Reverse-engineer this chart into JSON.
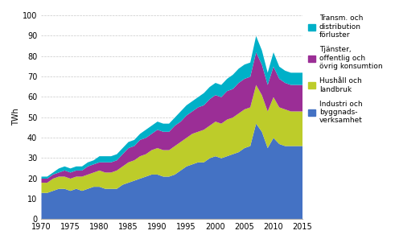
{
  "years": [
    1970,
    1971,
    1972,
    1973,
    1974,
    1975,
    1976,
    1977,
    1978,
    1979,
    1980,
    1981,
    1982,
    1983,
    1984,
    1985,
    1986,
    1987,
    1988,
    1989,
    1990,
    1991,
    1992,
    1993,
    1994,
    1995,
    1996,
    1997,
    1998,
    1999,
    2000,
    2001,
    2002,
    2003,
    2004,
    2005,
    2006,
    2007,
    2008,
    2009,
    2010,
    2011,
    2012,
    2013,
    2014,
    2015
  ],
  "industri": [
    13,
    13,
    14,
    15,
    15,
    14,
    15,
    14,
    15,
    16,
    16,
    15,
    15,
    15,
    17,
    18,
    19,
    20,
    21,
    22,
    22,
    21,
    21,
    22,
    24,
    26,
    27,
    28,
    28,
    30,
    31,
    30,
    31,
    32,
    33,
    35,
    36,
    47,
    43,
    35,
    40,
    37,
    36,
    36,
    36,
    36
  ],
  "hushall": [
    5,
    5,
    6,
    6,
    6,
    6,
    6,
    7,
    7,
    7,
    8,
    8,
    8,
    9,
    9,
    10,
    10,
    11,
    11,
    12,
    13,
    13,
    13,
    14,
    14,
    14,
    15,
    15,
    16,
    16,
    17,
    17,
    18,
    18,
    19,
    19,
    19,
    19,
    18,
    18,
    20,
    18,
    18,
    17,
    17,
    17
  ],
  "tjanster": [
    2,
    2,
    2,
    2,
    3,
    3,
    3,
    3,
    4,
    4,
    4,
    5,
    5,
    5,
    6,
    7,
    7,
    8,
    8,
    8,
    9,
    9,
    9,
    10,
    10,
    11,
    11,
    12,
    12,
    13,
    13,
    13,
    14,
    14,
    15,
    15,
    15,
    16,
    15,
    13,
    15,
    14,
    13,
    13,
    13,
    13
  ],
  "transm": [
    1,
    1,
    1,
    2,
    2,
    2,
    2,
    2,
    2,
    2,
    3,
    3,
    3,
    3,
    3,
    3,
    3,
    3,
    4,
    4,
    4,
    4,
    4,
    4,
    5,
    5,
    5,
    5,
    6,
    6,
    6,
    6,
    6,
    7,
    7,
    7,
    7,
    8,
    7,
    6,
    7,
    6,
    6,
    6,
    6,
    6
  ],
  "colors": {
    "industri": "#4472C4",
    "hushall": "#BDCC2A",
    "tjanster": "#9B2E96",
    "transm": "#00B0C8"
  },
  "legend_labels": {
    "transm": "Transm. och\ndistribution\nförluster",
    "tjanster": "Tjänster,\noffentlig och\növrig konsumtion",
    "hushall": "Hushåll och\nlandbruk",
    "industri": "Industri och\nbyggnads-\nverksamhet"
  },
  "ylabel": "TWh",
  "ylim": [
    0,
    100
  ],
  "yticks": [
    0,
    10,
    20,
    30,
    40,
    50,
    60,
    70,
    80,
    90,
    100
  ],
  "xticks": [
    1970,
    1975,
    1980,
    1985,
    1990,
    1995,
    2000,
    2005,
    2010,
    2015
  ],
  "xlim": [
    1970,
    2015
  ],
  "grid_color": "#c8c8c8",
  "background_color": "#ffffff"
}
